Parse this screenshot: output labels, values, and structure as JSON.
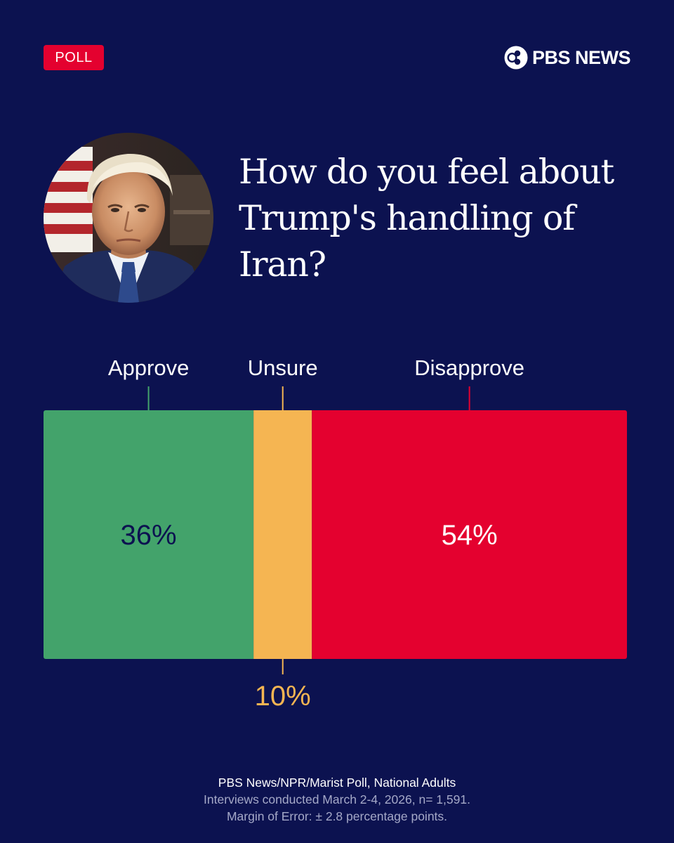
{
  "badge": {
    "label": "POLL"
  },
  "brand": {
    "name": "PBS NEWS"
  },
  "portrait": {
    "icon": "trump-portrait"
  },
  "question": "How do you feel about Trump's handling of Iran?",
  "colors": {
    "background": "#0c1250",
    "approve": "#43a36b",
    "unsure": "#f5b552",
    "disapprove": "#e4012f",
    "badge": "#e4012f"
  },
  "chart_data": {
    "type": "bar",
    "orientation": "horizontal-stacked",
    "categories": [
      "Approve",
      "Unsure",
      "Disapprove"
    ],
    "values": [
      36,
      10,
      54
    ],
    "value_labels": [
      "36%",
      "10%",
      "54%"
    ],
    "unit": "%",
    "xlim": [
      0,
      100
    ],
    "grid": false,
    "legend": "labels above segments"
  },
  "footer": {
    "source": "PBS News/NPR/Marist Poll, National Adults",
    "dates": "Interviews conducted March 2-4, 2026, n= 1,591.",
    "moe": "Margin of Error: ± 2.8 percentage points."
  }
}
